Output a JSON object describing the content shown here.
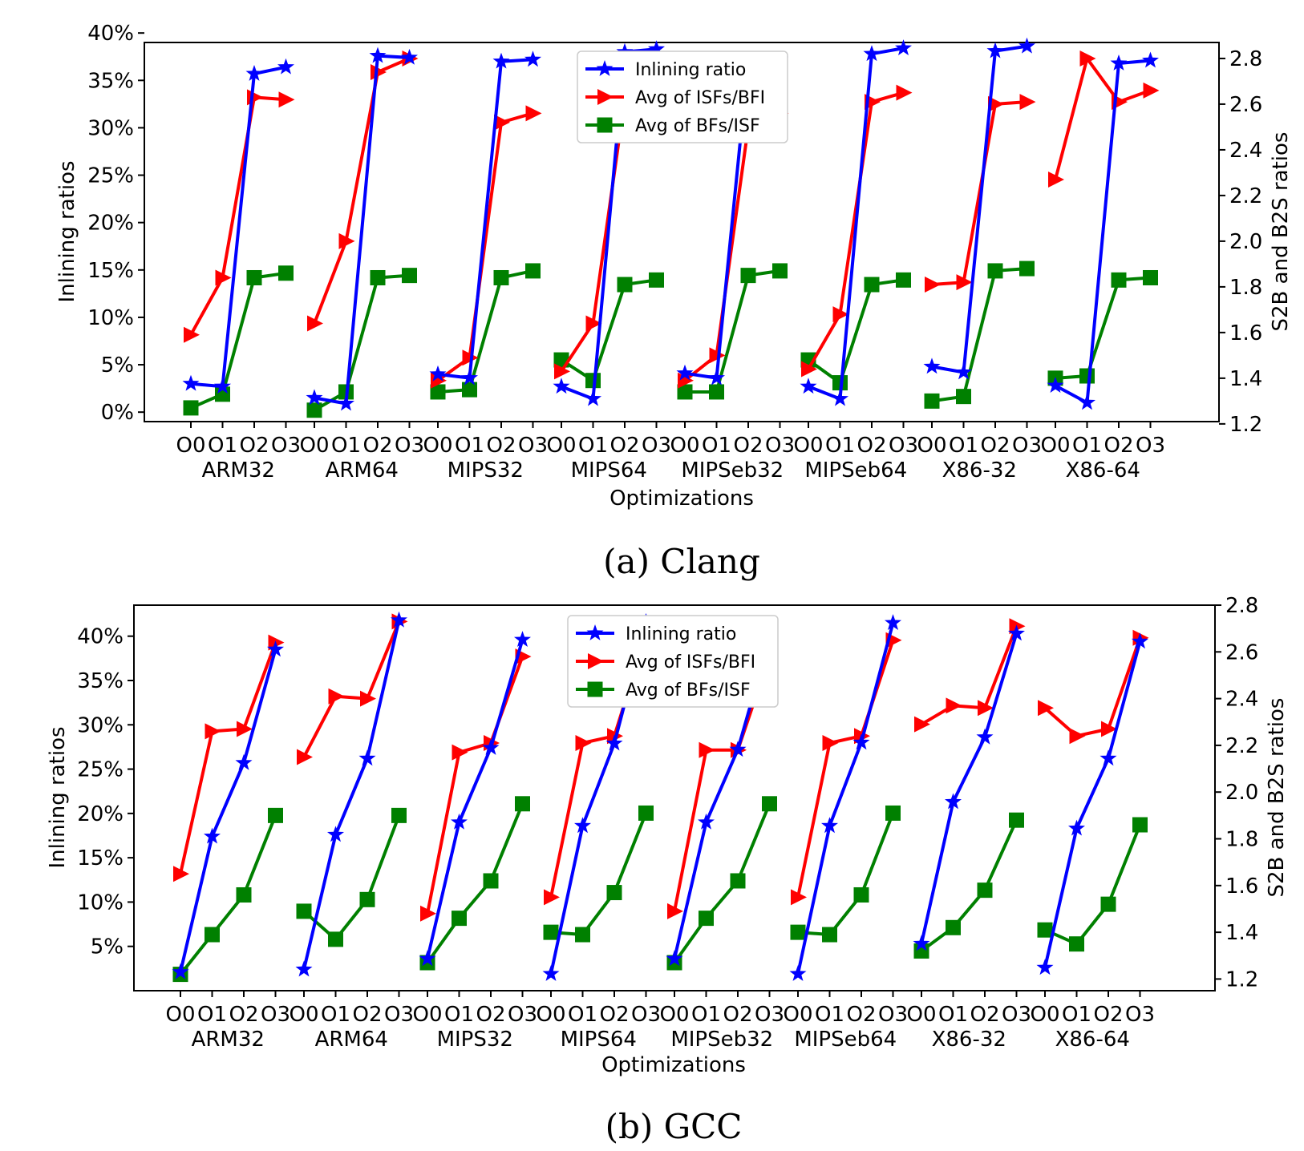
{
  "chart_data": [
    {
      "type": "line",
      "caption": "(a) Clang",
      "xlabel": "Optimizations",
      "ylabel": "Inlining ratios",
      "y2label": "S2B and B2S ratios",
      "ylim": [
        -0.01,
        0.39
      ],
      "y2lim": [
        1.21,
        2.87
      ],
      "yticks": [
        "0%",
        "5%",
        "10%",
        "15%",
        "20%",
        "25%",
        "30%",
        "35%",
        "40%"
      ],
      "y2ticks": [
        "1.2",
        "1.4",
        "1.6",
        "1.8",
        "2.0",
        "2.2",
        "2.4",
        "2.6",
        "2.8"
      ],
      "groups": [
        "ARM32",
        "ARM64",
        "MIPS32",
        "MIPS64",
        "MIPSeb32",
        "MIPSeb64",
        "X86-32",
        "X86-64"
      ],
      "opt_levels": [
        "O0",
        "O1",
        "O2",
        "O3"
      ],
      "legend_position": "top-center",
      "grid": false,
      "series": [
        {
          "name": "Inlining ratio",
          "axis": "left",
          "color": "#0000ff",
          "marker": "star",
          "values": [
            [
              0.03,
              0.027,
              0.357,
              0.364
            ],
            [
              0.015,
              0.009,
              0.376,
              0.374
            ],
            [
              0.04,
              0.036,
              0.37,
              0.372
            ],
            [
              0.027,
              0.014,
              0.38,
              0.383
            ],
            [
              0.041,
              0.036,
              0.37,
              0.372
            ],
            [
              0.027,
              0.014,
              0.378,
              0.384
            ],
            [
              0.048,
              0.042,
              0.381,
              0.386
            ],
            [
              0.028,
              0.01,
              0.368,
              0.371
            ]
          ]
        },
        {
          "name": "Avg of ISFs/BFI",
          "axis": "right",
          "color": "#ff0000",
          "marker": "triangle-right",
          "values": [
            [
              1.59,
              1.84,
              2.63,
              2.62
            ],
            [
              1.64,
              2.0,
              2.74,
              2.8
            ],
            [
              1.39,
              1.49,
              2.52,
              2.56
            ],
            [
              1.43,
              1.64,
              2.62,
              2.64
            ],
            [
              1.39,
              1.5,
              2.5,
              2.56
            ],
            [
              1.44,
              1.68,
              2.61,
              2.65
            ],
            [
              1.81,
              1.82,
              2.6,
              2.61
            ],
            [
              2.27,
              2.8,
              2.61,
              2.66
            ]
          ]
        },
        {
          "name": "Avg of BFs/ISF",
          "axis": "right",
          "color": "#008000",
          "marker": "square",
          "values": [
            [
              1.27,
              1.33,
              1.84,
              1.86
            ],
            [
              1.26,
              1.34,
              1.84,
              1.85
            ],
            [
              1.34,
              1.35,
              1.84,
              1.87
            ],
            [
              1.48,
              1.39,
              1.81,
              1.83
            ],
            [
              1.34,
              1.34,
              1.85,
              1.87
            ],
            [
              1.48,
              1.38,
              1.81,
              1.83
            ],
            [
              1.3,
              1.32,
              1.87,
              1.88
            ],
            [
              1.4,
              1.41,
              1.83,
              1.84
            ]
          ]
        }
      ]
    },
    {
      "type": "line",
      "caption": "(b) GCC",
      "xlabel": "Optimizations",
      "ylabel": "Inlining ratios",
      "y2label": "S2B and B2S ratios",
      "ylim": [
        0.0,
        0.435
      ],
      "y2lim": [
        1.15,
        2.8
      ],
      "yticks": [
        "5%",
        "10%",
        "15%",
        "20%",
        "25%",
        "30%",
        "35%",
        "40%"
      ],
      "y2ticks": [
        "1.2",
        "1.4",
        "1.6",
        "1.8",
        "2.0",
        "2.2",
        "2.4",
        "2.6",
        "2.8"
      ],
      "groups": [
        "ARM32",
        "ARM64",
        "MIPS32",
        "MIPS64",
        "MIPSeb32",
        "MIPSeb64",
        "X86-32",
        "X86-64"
      ],
      "opt_levels": [
        "O0",
        "O1",
        "O2",
        "O3"
      ],
      "legend_position": "top-center",
      "grid": false,
      "series": [
        {
          "name": "Inlining ratio",
          "axis": "left",
          "color": "#0000ff",
          "marker": "star",
          "values": [
            [
              0.021,
              0.174,
              0.257,
              0.385
            ],
            [
              0.024,
              0.176,
              0.262,
              0.418
            ],
            [
              0.036,
              0.19,
              0.274,
              0.396
            ],
            [
              0.019,
              0.186,
              0.279,
              0.416
            ],
            [
              0.036,
              0.19,
              0.272,
              0.397
            ],
            [
              0.019,
              0.186,
              0.28,
              0.415
            ],
            [
              0.053,
              0.213,
              0.286,
              0.403
            ],
            [
              0.026,
              0.183,
              0.262,
              0.394
            ]
          ]
        },
        {
          "name": "Avg of ISFs/BFI",
          "axis": "right",
          "color": "#ff0000",
          "marker": "triangle-right",
          "values": [
            [
              1.65,
              2.26,
              2.27,
              2.64
            ],
            [
              2.15,
              2.41,
              2.4,
              2.73
            ],
            [
              1.48,
              2.17,
              2.21,
              2.58
            ],
            [
              1.55,
              2.21,
              2.24,
              2.67
            ],
            [
              1.49,
              2.18,
              2.18,
              2.58
            ],
            [
              1.55,
              2.21,
              2.24,
              2.65
            ],
            [
              2.29,
              2.37,
              2.36,
              2.71
            ],
            [
              2.36,
              2.24,
              2.27,
              2.66
            ]
          ]
        },
        {
          "name": "Avg of BFs/ISF",
          "axis": "right",
          "color": "#008000",
          "marker": "square",
          "values": [
            [
              1.22,
              1.39,
              1.56,
              1.9
            ],
            [
              1.49,
              1.37,
              1.54,
              1.9
            ],
            [
              1.27,
              1.46,
              1.62,
              1.95
            ],
            [
              1.4,
              1.39,
              1.57,
              1.91
            ],
            [
              1.27,
              1.46,
              1.62,
              1.95
            ],
            [
              1.4,
              1.39,
              1.56,
              1.91
            ],
            [
              1.32,
              1.42,
              1.58,
              1.88
            ],
            [
              1.41,
              1.35,
              1.52,
              1.86
            ]
          ]
        }
      ]
    }
  ]
}
